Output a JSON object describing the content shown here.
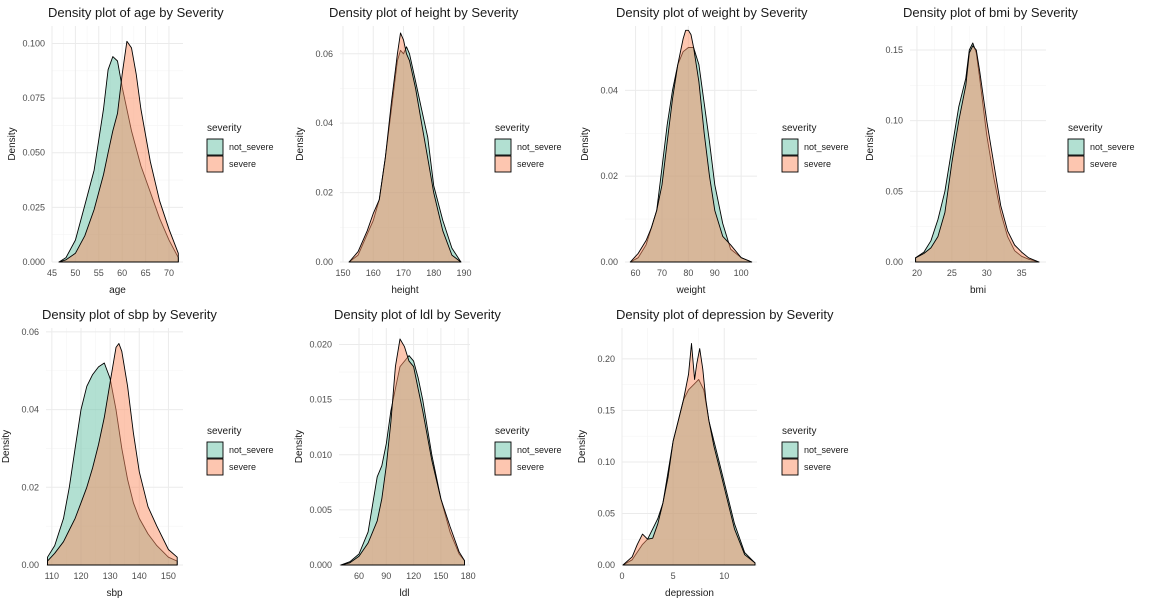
{
  "colors": {
    "not_severe_fill": "#66c2a5",
    "severe_fill": "#fc8d62",
    "grid_major": "#ebebeb",
    "grid_minor": "#f5f5f5",
    "outline": "#000000"
  },
  "legend": {
    "title": "severity",
    "items": [
      "not_severe",
      "severe"
    ]
  },
  "chart_data": [
    {
      "type": "area",
      "title": "Density plot of age by Severity",
      "xlabel": "age",
      "ylabel": "Density",
      "xlim": [
        45,
        73
      ],
      "ylim": [
        0,
        0.108
      ],
      "xticks": [
        45,
        50,
        55,
        60,
        65,
        70
      ],
      "xtick_labels": [
        "45",
        "50",
        "55",
        "60",
        "65",
        "70"
      ],
      "yticks": [
        0,
        0.025,
        0.05,
        0.075,
        0.1
      ],
      "ytick_labels": [
        "0.000",
        "0.025",
        "0.050",
        "0.075",
        "0.100"
      ],
      "series": [
        {
          "name": "not_severe",
          "x": [
            46.5,
            48,
            50,
            52,
            54,
            56,
            57,
            58,
            59,
            60,
            62,
            64,
            66,
            68,
            70,
            72
          ],
          "y": [
            0.0,
            0.002,
            0.01,
            0.026,
            0.042,
            0.07,
            0.088,
            0.094,
            0.092,
            0.08,
            0.06,
            0.044,
            0.032,
            0.02,
            0.01,
            0.002
          ]
        },
        {
          "name": "severe",
          "x": [
            46.5,
            48,
            50,
            52,
            54,
            56,
            57,
            58,
            59,
            60,
            61,
            62,
            63,
            64,
            66,
            68,
            70,
            72
          ],
          "y": [
            0.0,
            0.001,
            0.004,
            0.012,
            0.024,
            0.04,
            0.05,
            0.06,
            0.068,
            0.086,
            0.101,
            0.098,
            0.086,
            0.07,
            0.046,
            0.028,
            0.015,
            0.004
          ]
        }
      ]
    },
    {
      "type": "area",
      "title": "Density plot of height by Severity",
      "xlabel": "height",
      "ylabel": "Density",
      "xlim": [
        149,
        192
      ],
      "ylim": [
        0,
        0.068
      ],
      "xticks": [
        150,
        160,
        170,
        180,
        190
      ],
      "xtick_labels": [
        "150",
        "160",
        "170",
        "180",
        "190"
      ],
      "yticks": [
        0,
        0.02,
        0.04,
        0.06
      ],
      "ytick_labels": [
        "0.00",
        "0.02",
        "0.04",
        "0.06"
      ],
      "series": [
        {
          "name": "not_severe",
          "x": [
            152,
            155,
            158,
            160,
            162,
            164,
            166,
            168,
            169,
            170,
            171,
            172,
            174,
            176,
            178,
            180,
            183,
            186,
            189
          ],
          "y": [
            0.0,
            0.002,
            0.008,
            0.012,
            0.018,
            0.03,
            0.044,
            0.058,
            0.061,
            0.06,
            0.062,
            0.06,
            0.052,
            0.044,
            0.036,
            0.022,
            0.012,
            0.004,
            0.0
          ]
        },
        {
          "name": "severe",
          "x": [
            152,
            155,
            158,
            160,
            162,
            164,
            166,
            168,
            169,
            170,
            171,
            172,
            174,
            176,
            178,
            180,
            183,
            186,
            189
          ],
          "y": [
            0.0,
            0.003,
            0.009,
            0.014,
            0.018,
            0.03,
            0.046,
            0.06,
            0.066,
            0.064,
            0.06,
            0.058,
            0.05,
            0.04,
            0.03,
            0.02,
            0.009,
            0.002,
            0.0
          ]
        }
      ]
    },
    {
      "type": "area",
      "title": "Density plot of weight by Severity",
      "xlabel": "weight",
      "ylabel": "Density",
      "xlim": [
        56,
        106
      ],
      "ylim": [
        0,
        0.055
      ],
      "xticks": [
        60,
        70,
        80,
        90,
        100
      ],
      "xtick_labels": [
        "60",
        "70",
        "80",
        "90",
        "100"
      ],
      "yticks": [
        0,
        0.02,
        0.04
      ],
      "ytick_labels": [
        "0.00",
        "0.02",
        "0.04"
      ],
      "series": [
        {
          "name": "not_severe",
          "x": [
            58,
            61,
            64,
            66,
            68,
            70,
            72,
            74,
            76,
            78,
            80,
            82,
            84,
            86,
            88,
            90,
            93,
            96,
            100,
            104
          ],
          "y": [
            0.0,
            0.001,
            0.004,
            0.008,
            0.012,
            0.022,
            0.032,
            0.04,
            0.046,
            0.049,
            0.05,
            0.05,
            0.046,
            0.037,
            0.028,
            0.018,
            0.009,
            0.003,
            0.001,
            0.0
          ]
        },
        {
          "name": "severe",
          "x": [
            58,
            61,
            64,
            66,
            68,
            70,
            72,
            74,
            76,
            78,
            79,
            80,
            81,
            82,
            84,
            86,
            88,
            90,
            93,
            96,
            100,
            104
          ],
          "y": [
            0.0,
            0.002,
            0.005,
            0.008,
            0.012,
            0.018,
            0.028,
            0.038,
            0.046,
            0.052,
            0.054,
            0.054,
            0.053,
            0.05,
            0.042,
            0.03,
            0.02,
            0.012,
            0.006,
            0.004,
            0.001,
            0.0
          ]
        }
      ]
    },
    {
      "type": "area",
      "title": "Density plot of bmi by Severity",
      "xlabel": "bmi",
      "ylabel": "Density",
      "xlim": [
        19,
        38.5
      ],
      "ylim": [
        0,
        0.167
      ],
      "xticks": [
        20,
        25,
        30,
        35
      ],
      "xtick_labels": [
        "20",
        "25",
        "30",
        "35"
      ],
      "yticks": [
        0,
        0.05,
        0.1,
        0.15
      ],
      "ytick_labels": [
        "0.00",
        "0.05",
        "0.10",
        "0.15"
      ],
      "series": [
        {
          "name": "not_severe",
          "x": [
            19.8,
            21,
            22,
            23,
            24,
            25,
            26,
            27,
            27.5,
            28,
            28.5,
            29,
            30,
            31,
            32,
            33,
            34,
            35,
            36,
            37.5
          ],
          "y": [
            0.003,
            0.007,
            0.015,
            0.03,
            0.05,
            0.08,
            0.11,
            0.13,
            0.15,
            0.155,
            0.148,
            0.13,
            0.09,
            0.06,
            0.035,
            0.018,
            0.008,
            0.004,
            0.002,
            0.0
          ]
        },
        {
          "name": "severe",
          "x": [
            19.8,
            21,
            22,
            23,
            24,
            25,
            26,
            27,
            27.5,
            28,
            28.5,
            29,
            30,
            31,
            32,
            33,
            34,
            35,
            36,
            37.5
          ],
          "y": [
            0.003,
            0.006,
            0.01,
            0.018,
            0.035,
            0.07,
            0.1,
            0.125,
            0.148,
            0.153,
            0.15,
            0.135,
            0.1,
            0.07,
            0.04,
            0.022,
            0.012,
            0.007,
            0.003,
            0.0
          ]
        }
      ]
    },
    {
      "type": "area",
      "title": "Density plot of sbp by Severity",
      "xlabel": "sbp",
      "ylabel": "Density",
      "xlim": [
        108,
        155
      ],
      "ylim": [
        0,
        0.061
      ],
      "xticks": [
        110,
        120,
        130,
        140,
        150
      ],
      "xtick_labels": [
        "110",
        "120",
        "130",
        "140",
        "150"
      ],
      "yticks": [
        0,
        0.02,
        0.04,
        0.06
      ],
      "ytick_labels": [
        "0.00",
        "0.02",
        "0.04",
        "0.06"
      ],
      "series": [
        {
          "name": "not_severe",
          "x": [
            108.5,
            111,
            114,
            116,
            118,
            120,
            122,
            124,
            126,
            128,
            130,
            132,
            134,
            136,
            138,
            140,
            143,
            146,
            150,
            153
          ],
          "y": [
            0.002,
            0.005,
            0.012,
            0.02,
            0.03,
            0.04,
            0.046,
            0.049,
            0.051,
            0.052,
            0.048,
            0.04,
            0.03,
            0.022,
            0.016,
            0.012,
            0.008,
            0.005,
            0.002,
            0.001
          ]
        },
        {
          "name": "severe",
          "x": [
            108.5,
            111,
            114,
            116,
            118,
            120,
            122,
            124,
            126,
            128,
            130,
            132,
            133,
            134,
            136,
            138,
            140,
            143,
            146,
            150,
            153
          ],
          "y": [
            0.001,
            0.003,
            0.006,
            0.009,
            0.012,
            0.016,
            0.02,
            0.025,
            0.031,
            0.038,
            0.047,
            0.056,
            0.057,
            0.055,
            0.046,
            0.034,
            0.024,
            0.015,
            0.01,
            0.004,
            0.002
          ]
        }
      ]
    },
    {
      "type": "area",
      "title": "Density plot of ldl by Severity",
      "xlabel": "ldl",
      "ylabel": "Density",
      "xlim": [
        38,
        182
      ],
      "ylim": [
        0,
        0.0215
      ],
      "xticks": [
        60,
        90,
        120,
        150,
        180
      ],
      "xtick_labels": [
        "60",
        "90",
        "120",
        "150",
        "180"
      ],
      "yticks": [
        0,
        0.005,
        0.01,
        0.015,
        0.02
      ],
      "ytick_labels": [
        "0.000",
        "0.005",
        "0.010",
        "0.015",
        "0.020"
      ],
      "series": [
        {
          "name": "not_severe",
          "x": [
            40,
            50,
            60,
            70,
            80,
            85,
            90,
            95,
            100,
            105,
            110,
            115,
            120,
            125,
            130,
            140,
            150,
            160,
            170,
            176
          ],
          "y": [
            0.0,
            0.0003,
            0.001,
            0.003,
            0.008,
            0.009,
            0.011,
            0.014,
            0.016,
            0.018,
            0.0185,
            0.019,
            0.0185,
            0.017,
            0.015,
            0.01,
            0.006,
            0.003,
            0.001,
            0.0004
          ]
        },
        {
          "name": "severe",
          "x": [
            40,
            50,
            60,
            70,
            80,
            85,
            90,
            95,
            100,
            105,
            110,
            115,
            120,
            125,
            130,
            140,
            150,
            160,
            170,
            176
          ],
          "y": [
            0.0,
            0.0002,
            0.0008,
            0.002,
            0.004,
            0.006,
            0.009,
            0.013,
            0.018,
            0.0205,
            0.0198,
            0.0185,
            0.018,
            0.016,
            0.014,
            0.0095,
            0.006,
            0.0035,
            0.0012,
            0.0004
          ]
        }
      ]
    },
    {
      "type": "area",
      "title": "Density plot of depression by Severity",
      "xlabel": "depression",
      "ylabel": "Density",
      "xlim": [
        0,
        13.2
      ],
      "ylim": [
        0,
        0.23
      ],
      "xticks": [
        0,
        5,
        10
      ],
      "xtick_labels": [
        "0",
        "5",
        "10"
      ],
      "yticks": [
        0,
        0.05,
        0.1,
        0.15,
        0.2
      ],
      "ytick_labels": [
        "0.00",
        "0.05",
        "0.10",
        "0.15",
        "0.20"
      ],
      "series": [
        {
          "name": "not_severe",
          "x": [
            0.1,
            1,
            2,
            2.5,
            3,
            3.5,
            4,
            4.5,
            5,
            5.5,
            6,
            6.5,
            7,
            7.5,
            8,
            8.5,
            9,
            9.5,
            10,
            11,
            12,
            13
          ],
          "y": [
            0.0,
            0.005,
            0.02,
            0.025,
            0.035,
            0.045,
            0.06,
            0.09,
            0.12,
            0.14,
            0.16,
            0.17,
            0.175,
            0.18,
            0.17,
            0.14,
            0.12,
            0.1,
            0.08,
            0.04,
            0.012,
            0.002
          ]
        },
        {
          "name": "severe",
          "x": [
            0.1,
            1,
            1.5,
            2,
            2.5,
            3,
            3.5,
            4,
            4.5,
            5,
            5.5,
            6,
            6.5,
            6.8,
            7.1,
            7.3,
            7.6,
            7.9,
            8.2,
            8.5,
            9,
            9.5,
            10,
            11,
            12,
            13
          ],
          "y": [
            0.0,
            0.008,
            0.02,
            0.03,
            0.025,
            0.026,
            0.04,
            0.06,
            0.085,
            0.12,
            0.14,
            0.16,
            0.185,
            0.215,
            0.18,
            0.195,
            0.21,
            0.19,
            0.16,
            0.14,
            0.115,
            0.095,
            0.075,
            0.035,
            0.01,
            0.002
          ]
        }
      ]
    }
  ]
}
